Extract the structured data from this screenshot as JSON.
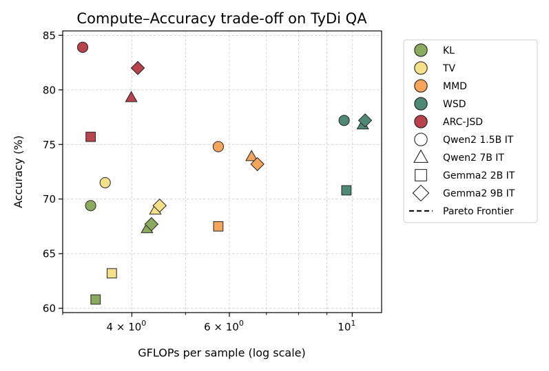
{
  "chart_data": {
    "type": "scatter",
    "title": "Compute–Accuracy trade-off on TyDi QA",
    "xlabel": "GFLOPs per sample (log scale)",
    "ylabel": "Accuracy (%)",
    "xscale": "log",
    "xlim": [
      3.0,
      11.3
    ],
    "ylim": [
      59.6,
      85.4
    ],
    "grid": true,
    "x_major_ticks": [
      {
        "value": 4,
        "base": "4",
        "exp": "0"
      },
      {
        "value": 6,
        "base": "6",
        "exp": "0"
      },
      {
        "value": 10,
        "base": "10",
        "exp": "1"
      }
    ],
    "x_minor_ticks": [
      3,
      5,
      7,
      8,
      9
    ],
    "times_sign": "×",
    "y_ticks": [
      {
        "value": 60,
        "label": "60"
      },
      {
        "value": 65,
        "label": "65"
      },
      {
        "value": 70,
        "label": "70"
      },
      {
        "value": 75,
        "label": "75"
      },
      {
        "value": 80,
        "label": "80"
      },
      {
        "value": 85,
        "label": "85"
      }
    ],
    "methods": [
      {
        "name": "KL",
        "color": "#8aab5e"
      },
      {
        "name": "TV",
        "color": "#f5e08a"
      },
      {
        "name": "MMD",
        "color": "#f5a45a"
      },
      {
        "name": "WSD",
        "color": "#4e8a73"
      },
      {
        "name": "ARC-JSD",
        "color": "#b8434b"
      }
    ],
    "models": [
      {
        "name": "Qwen2 1.5B IT",
        "marker": "circle"
      },
      {
        "name": "Qwen2 7B IT",
        "marker": "triangle"
      },
      {
        "name": "Gemma2 2B IT",
        "marker": "square"
      },
      {
        "name": "Gemma2 9B IT",
        "marker": "diamond"
      }
    ],
    "pareto_label": "Pareto Frontier",
    "points": [
      {
        "method": "KL",
        "model": "Qwen2 1.5B IT",
        "x": 3.37,
        "y": 69.4
      },
      {
        "method": "KL",
        "model": "Qwen2 7B IT",
        "x": 4.26,
        "y": 67.3
      },
      {
        "method": "KL",
        "model": "Gemma2 2B IT",
        "x": 3.44,
        "y": 60.8
      },
      {
        "method": "KL",
        "model": "Gemma2 9B IT",
        "x": 4.34,
        "y": 67.7
      },
      {
        "method": "TV",
        "model": "Qwen2 1.5B IT",
        "x": 3.58,
        "y": 71.5
      },
      {
        "method": "TV",
        "model": "Qwen2 7B IT",
        "x": 4.41,
        "y": 69.0
      },
      {
        "method": "TV",
        "model": "Gemma2 2B IT",
        "x": 3.68,
        "y": 63.2
      },
      {
        "method": "TV",
        "model": "Gemma2 9B IT",
        "x": 4.49,
        "y": 69.4
      },
      {
        "method": "MMD",
        "model": "Qwen2 1.5B IT",
        "x": 5.73,
        "y": 74.8
      },
      {
        "method": "MMD",
        "model": "Qwen2 7B IT",
        "x": 6.58,
        "y": 73.9
      },
      {
        "method": "MMD",
        "model": "Gemma2 2B IT",
        "x": 5.73,
        "y": 67.5
      },
      {
        "method": "MMD",
        "model": "Gemma2 9B IT",
        "x": 6.74,
        "y": 73.2
      },
      {
        "method": "WSD",
        "model": "Qwen2 1.5B IT",
        "x": 9.67,
        "y": 77.2
      },
      {
        "method": "WSD",
        "model": "Qwen2 7B IT",
        "x": 10.45,
        "y": 76.8
      },
      {
        "method": "WSD",
        "model": "Gemma2 2B IT",
        "x": 9.76,
        "y": 70.8
      },
      {
        "method": "WSD",
        "model": "Gemma2 9B IT",
        "x": 10.55,
        "y": 77.2
      },
      {
        "method": "ARC-JSD",
        "model": "Qwen2 1.5B IT",
        "x": 3.26,
        "y": 83.9
      },
      {
        "method": "ARC-JSD",
        "model": "Qwen2 7B IT",
        "x": 3.99,
        "y": 79.3
      },
      {
        "method": "ARC-JSD",
        "model": "Gemma2 2B IT",
        "x": 3.37,
        "y": 75.7
      },
      {
        "method": "ARC-JSD",
        "model": "Gemma2 9B IT",
        "x": 4.1,
        "y": 82.0
      }
    ]
  }
}
